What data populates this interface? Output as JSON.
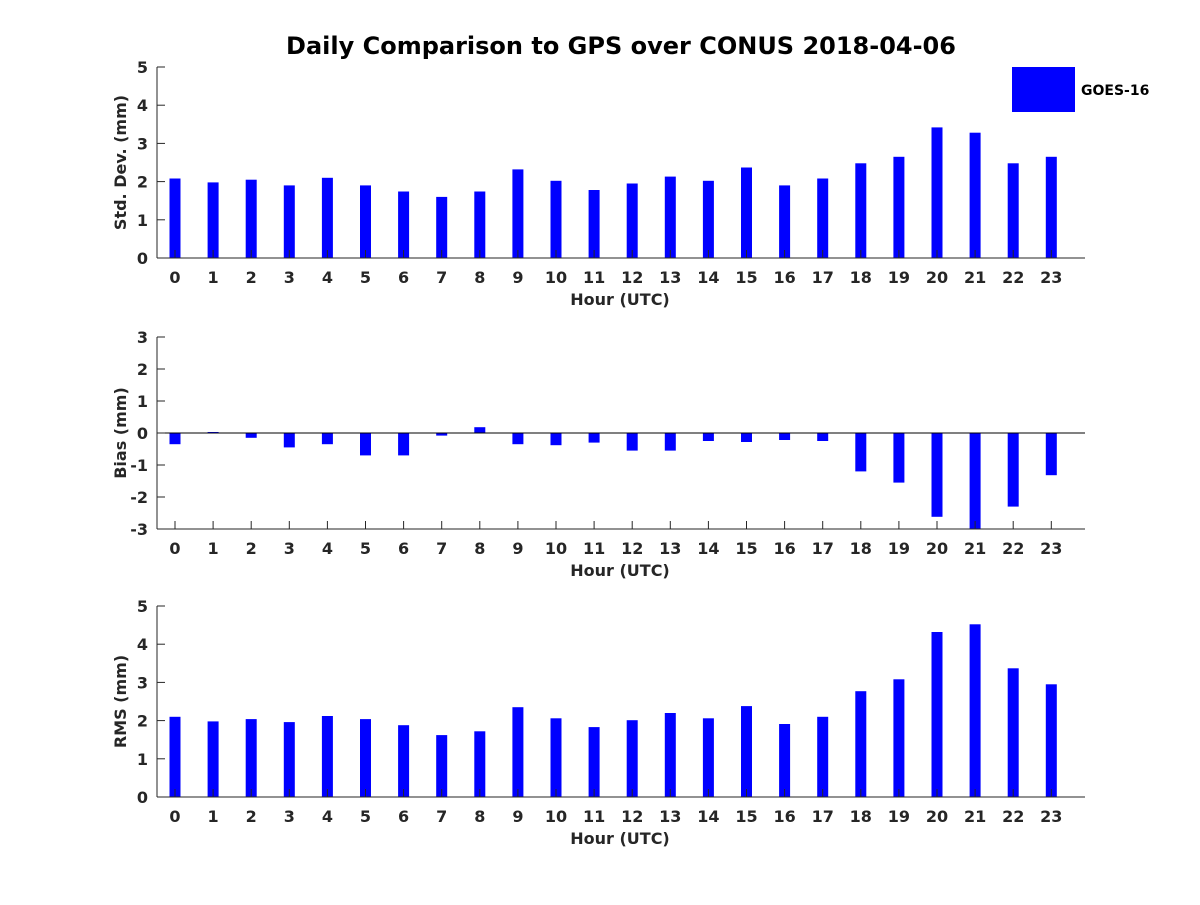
{
  "title": "Daily Comparison to GPS over CONUS 2018-04-06",
  "legend": {
    "label": "GOES-16",
    "color": "#0000ff"
  },
  "chart_data": [
    {
      "type": "bar",
      "name": "std-dev",
      "series_name": "GOES-16",
      "color": "#0000ff",
      "xlabel": "Hour (UTC)",
      "ylabel": "Std. Dev. (mm)",
      "ylim": [
        0,
        5
      ],
      "yticks": [
        0,
        1,
        2,
        3,
        4,
        5
      ],
      "categories": [
        "0",
        "1",
        "2",
        "3",
        "4",
        "5",
        "6",
        "7",
        "8",
        "9",
        "10",
        "11",
        "12",
        "13",
        "14",
        "15",
        "16",
        "17",
        "18",
        "19",
        "20",
        "21",
        "22",
        "23"
      ],
      "values": [
        2.08,
        1.98,
        2.05,
        1.9,
        2.1,
        1.9,
        1.74,
        1.6,
        1.74,
        2.32,
        2.02,
        1.78,
        1.95,
        2.13,
        2.02,
        2.37,
        1.9,
        2.08,
        2.48,
        2.65,
        3.42,
        3.28,
        2.48,
        2.65
      ]
    },
    {
      "type": "bar",
      "name": "bias",
      "series_name": "GOES-16",
      "color": "#0000ff",
      "xlabel": "Hour (UTC)",
      "ylabel": "Bias (mm)",
      "ylim": [
        -3,
        3
      ],
      "yticks": [
        -3,
        -2,
        -1,
        0,
        1,
        2,
        3
      ],
      "zero_line": true,
      "categories": [
        "0",
        "1",
        "2",
        "3",
        "4",
        "5",
        "6",
        "7",
        "8",
        "9",
        "10",
        "11",
        "12",
        "13",
        "14",
        "15",
        "16",
        "17",
        "18",
        "19",
        "20",
        "21",
        "22",
        "23"
      ],
      "values": [
        -0.35,
        0.03,
        -0.15,
        -0.45,
        -0.35,
        -0.7,
        -0.7,
        -0.08,
        0.18,
        -0.35,
        -0.38,
        -0.3,
        -0.55,
        -0.55,
        -0.25,
        -0.28,
        -0.22,
        -0.25,
        -1.2,
        -1.55,
        -2.62,
        -3.0,
        -2.3,
        -1.32
      ]
    },
    {
      "type": "bar",
      "name": "rms",
      "series_name": "GOES-16",
      "color": "#0000ff",
      "xlabel": "Hour (UTC)",
      "ylabel": "RMS (mm)",
      "ylim": [
        0,
        5
      ],
      "yticks": [
        0,
        1,
        2,
        3,
        4,
        5
      ],
      "categories": [
        "0",
        "1",
        "2",
        "3",
        "4",
        "5",
        "6",
        "7",
        "8",
        "9",
        "10",
        "11",
        "12",
        "13",
        "14",
        "15",
        "16",
        "17",
        "18",
        "19",
        "20",
        "21",
        "22",
        "23"
      ],
      "values": [
        2.1,
        1.98,
        2.04,
        1.96,
        2.12,
        2.04,
        1.88,
        1.62,
        1.72,
        2.35,
        2.06,
        1.83,
        2.01,
        2.2,
        2.06,
        2.38,
        1.91,
        2.1,
        2.77,
        3.08,
        4.32,
        4.52,
        3.37,
        2.95
      ]
    }
  ]
}
